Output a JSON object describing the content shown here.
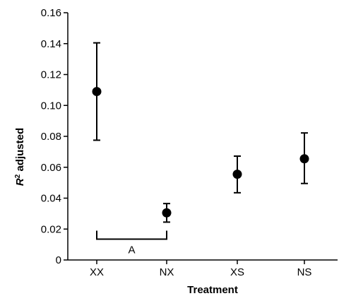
{
  "chart_data": {
    "type": "scatter",
    "xlabel": "Treatment",
    "ylabel_italic": "R",
    "ylabel_sup": "2",
    "ylabel_rest": " adjusted",
    "ylim": [
      0,
      0.16
    ],
    "y_ticks": [
      "0",
      "0.02",
      "0.04",
      "0.06",
      "0.08",
      "0.10",
      "0.12",
      "0.14",
      "0.16"
    ],
    "y_tick_values": [
      0,
      0.02,
      0.04,
      0.06,
      0.08,
      0.1,
      0.12,
      0.14,
      0.16
    ],
    "categories": [
      "XX",
      "NX",
      "XS",
      "NS"
    ],
    "points": [
      {
        "category": "XX",
        "mean": 0.109,
        "lower": 0.0775,
        "upper": 0.1405
      },
      {
        "category": "NX",
        "mean": 0.0305,
        "lower": 0.0245,
        "upper": 0.0365
      },
      {
        "category": "XS",
        "mean": 0.0555,
        "lower": 0.0435,
        "upper": 0.0672
      },
      {
        "category": "NS",
        "mean": 0.0655,
        "lower": 0.0495,
        "upper": 0.0822
      }
    ],
    "grid": false,
    "annotation": {
      "text": "A",
      "from": "XX",
      "to": "NX",
      "y": 0.0135
    }
  }
}
